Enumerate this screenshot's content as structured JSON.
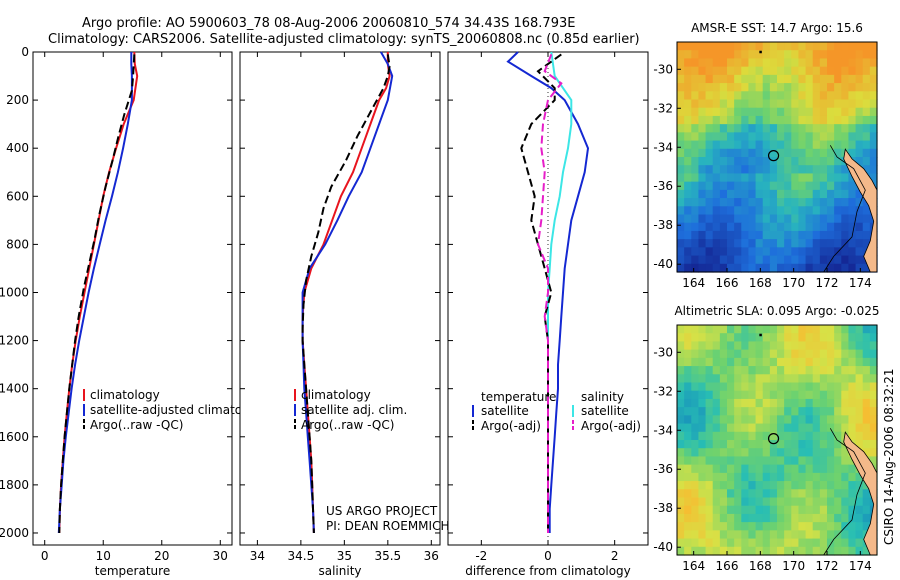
{
  "header": {
    "line1": "Argo profile: AO 5900603_78 08-Aug-2006 20060810_574 34.43S 168.793E",
    "line2": "Climatology: CARS2006. Satellite-adjusted climatology: synTS_20060808.nc (0.85d earlier)"
  },
  "side_label": "CSIRO 14-Aug-2006 08:32:21",
  "colors": {
    "red": "#e8141e",
    "blue": "#1428d2",
    "black": "#000000",
    "cyan": "#3ce6e6",
    "magenta": "#e61ec8"
  },
  "chart_data": [
    {
      "id": "temperature",
      "type": "line",
      "xlabel": "temperature",
      "xlim": [
        -2,
        32
      ],
      "ylim": [
        2050,
        0
      ],
      "xticks": [
        0,
        10,
        20,
        30
      ],
      "yticks": [
        0,
        200,
        400,
        600,
        800,
        1000,
        1200,
        1400,
        1600,
        1800,
        2000
      ],
      "legend": [
        "climatology",
        "satellite-adjusted climatolog",
        "Argo(..raw -QC)"
      ],
      "series": [
        {
          "name": "climatology",
          "color": "red",
          "dash": "",
          "points": [
            [
              15.3,
              0
            ],
            [
              15.4,
              50
            ],
            [
              15.8,
              100
            ],
            [
              15.2,
              200
            ],
            [
              13.5,
              300
            ],
            [
              12.2,
              400
            ],
            [
              11,
              500
            ],
            [
              10,
              600
            ],
            [
              9.2,
              700
            ],
            [
              8.4,
              800
            ],
            [
              7.6,
              900
            ],
            [
              6.8,
              1000
            ],
            [
              6,
              1100
            ],
            [
              5.3,
              1200
            ],
            [
              4.7,
              1300
            ],
            [
              4.2,
              1400
            ],
            [
              3.8,
              1500
            ],
            [
              3.4,
              1600
            ],
            [
              3.1,
              1700
            ],
            [
              2.8,
              1800
            ],
            [
              2.6,
              1900
            ],
            [
              2.5,
              2000
            ]
          ]
        },
        {
          "name": "satellite-adjusted climatolog",
          "color": "blue",
          "dash": "",
          "points": [
            [
              14.8,
              0
            ],
            [
              14.8,
              50
            ],
            [
              14.9,
              100
            ],
            [
              14.9,
              200
            ],
            [
              14.2,
              300
            ],
            [
              13.4,
              400
            ],
            [
              12.5,
              500
            ],
            [
              11.5,
              600
            ],
            [
              10.4,
              700
            ],
            [
              9.4,
              800
            ],
            [
              8.4,
              900
            ],
            [
              7.5,
              1000
            ],
            [
              6.7,
              1100
            ],
            [
              5.9,
              1200
            ],
            [
              5.2,
              1300
            ],
            [
              4.6,
              1400
            ],
            [
              4.1,
              1500
            ],
            [
              3.6,
              1600
            ],
            [
              3.2,
              1700
            ],
            [
              2.9,
              1800
            ],
            [
              2.6,
              1900
            ],
            [
              2.4,
              2000
            ]
          ]
        },
        {
          "name": "Argo(..raw -QC)",
          "color": "black",
          "dash": "8,4",
          "points": [
            [
              15.3,
              10
            ],
            [
              15.1,
              100
            ],
            [
              14.9,
              160
            ],
            [
              13.6,
              260
            ],
            [
              12.6,
              350
            ],
            [
              11.6,
              450
            ],
            [
              10.4,
              560
            ],
            [
              9.3,
              680
            ],
            [
              8.5,
              780
            ],
            [
              7.6,
              880
            ],
            [
              6.7,
              980
            ],
            [
              5.8,
              1100
            ],
            [
              5.2,
              1200
            ],
            [
              4.7,
              1300
            ],
            [
              4.2,
              1400
            ],
            [
              3.8,
              1500
            ],
            [
              3.4,
              1600
            ],
            [
              3.1,
              1700
            ],
            [
              2.8,
              1800
            ],
            [
              2.6,
              1900
            ],
            [
              2.5,
              2000
            ]
          ]
        }
      ]
    },
    {
      "id": "salinity",
      "type": "line",
      "xlabel": "salinity",
      "xlim": [
        33.8,
        36.1
      ],
      "ylim": [
        2050,
        0
      ],
      "xticks": [
        34,
        34.5,
        35,
        35.5,
        36
      ],
      "legend": [
        "climatology",
        "satellite adj. clim.",
        "Argo(..raw -QC)"
      ],
      "annotation": [
        "US ARGO PROJECT",
        "PI: DEAN ROEMMICH"
      ],
      "series": [
        {
          "name": "climatology",
          "color": "red",
          "dash": "",
          "points": [
            [
              35.5,
              0
            ],
            [
              35.5,
              50
            ],
            [
              35.52,
              100
            ],
            [
              35.48,
              150
            ],
            [
              35.4,
              200
            ],
            [
              35.3,
              300
            ],
            [
              35.2,
              400
            ],
            [
              35.1,
              500
            ],
            [
              34.96,
              600
            ],
            [
              34.86,
              700
            ],
            [
              34.76,
              800
            ],
            [
              34.62,
              900
            ],
            [
              34.54,
              1000
            ],
            [
              34.52,
              1100
            ],
            [
              34.52,
              1200
            ],
            [
              34.54,
              1300
            ],
            [
              34.56,
              1400
            ],
            [
              34.58,
              1500
            ],
            [
              34.6,
              1600
            ],
            [
              34.62,
              1700
            ],
            [
              34.63,
              1800
            ],
            [
              34.64,
              1900
            ],
            [
              34.65,
              2000
            ]
          ]
        },
        {
          "name": "satellite adj. clim.",
          "color": "blue",
          "dash": "",
          "points": [
            [
              35.42,
              0
            ],
            [
              35.5,
              50
            ],
            [
              35.55,
              100
            ],
            [
              35.5,
              200
            ],
            [
              35.4,
              300
            ],
            [
              35.3,
              400
            ],
            [
              35.2,
              500
            ],
            [
              35.05,
              600
            ],
            [
              34.92,
              700
            ],
            [
              34.78,
              800
            ],
            [
              34.6,
              900
            ],
            [
              34.52,
              1000
            ],
            [
              34.52,
              1100
            ],
            [
              34.52,
              1200
            ],
            [
              34.53,
              1300
            ],
            [
              34.54,
              1400
            ],
            [
              34.56,
              1500
            ],
            [
              34.58,
              1600
            ],
            [
              34.6,
              1700
            ],
            [
              34.62,
              1800
            ],
            [
              34.64,
              1900
            ],
            [
              34.65,
              2000
            ]
          ]
        },
        {
          "name": "Argo(..raw -QC)",
          "color": "black",
          "dash": "8,4",
          "points": [
            [
              35.5,
              10
            ],
            [
              35.52,
              60
            ],
            [
              35.5,
              100
            ],
            [
              35.45,
              150
            ],
            [
              35.3,
              250
            ],
            [
              35.15,
              350
            ],
            [
              35.02,
              450
            ],
            [
              34.85,
              560
            ],
            [
              34.76,
              650
            ],
            [
              34.7,
              750
            ],
            [
              34.62,
              850
            ],
            [
              34.56,
              950
            ],
            [
              34.53,
              1050
            ],
            [
              34.52,
              1150
            ],
            [
              34.52,
              1200
            ],
            [
              34.54,
              1300
            ],
            [
              34.56,
              1400
            ],
            [
              34.58,
              1500
            ],
            [
              34.6,
              1600
            ],
            [
              34.62,
              1700
            ],
            [
              34.63,
              1800
            ],
            [
              34.64,
              1900
            ],
            [
              34.65,
              2000
            ]
          ]
        }
      ]
    },
    {
      "id": "difference",
      "type": "line",
      "xlabel": "difference from climatology",
      "xlim": [
        -3,
        3
      ],
      "ylim": [
        2050,
        0
      ],
      "xticks": [
        -2,
        0,
        2
      ],
      "legend_headers": [
        "temperature",
        "salinity"
      ],
      "legend": [
        "satellite",
        "Argo(-adj)",
        "satellite",
        "Argo(-adj)"
      ],
      "series": [
        {
          "name": "temperature satellite",
          "color": "blue",
          "dash": "",
          "points": [
            [
              -0.9,
              0
            ],
            [
              -1.2,
              40
            ],
            [
              -0.5,
              100
            ],
            [
              0.1,
              150
            ],
            [
              0.5,
              200
            ],
            [
              0.9,
              300
            ],
            [
              1.2,
              400
            ],
            [
              1.1,
              500
            ],
            [
              0.9,
              600
            ],
            [
              0.7,
              700
            ],
            [
              0.6,
              800
            ],
            [
              0.5,
              900
            ],
            [
              0.45,
              1000
            ],
            [
              0.4,
              1100
            ],
            [
              0.35,
              1200
            ],
            [
              0.3,
              1300
            ],
            [
              0.3,
              1400
            ],
            [
              0.25,
              1500
            ],
            [
              0.2,
              1600
            ],
            [
              0.15,
              1700
            ],
            [
              0.1,
              1800
            ],
            [
              0.05,
              1900
            ],
            [
              0.05,
              2000
            ]
          ]
        },
        {
          "name": "salinity satellite",
          "color": "cyan",
          "dash": "",
          "points": [
            [
              0.1,
              0
            ],
            [
              0.2,
              100
            ],
            [
              0.7,
              200
            ],
            [
              0.7,
              300
            ],
            [
              0.6,
              400
            ],
            [
              0.45,
              500
            ],
            [
              0.35,
              600
            ],
            [
              0.2,
              700
            ],
            [
              0.1,
              800
            ],
            [
              0.05,
              900
            ],
            [
              0,
              1000
            ],
            [
              0,
              1100
            ],
            [
              0,
              1200
            ],
            [
              0,
              1400
            ],
            [
              0,
              2000
            ]
          ]
        },
        {
          "name": "temperature Argo(-adj)",
          "color": "black",
          "dash": "8,4",
          "points": [
            [
              0.4,
              10
            ],
            [
              -0.3,
              80
            ],
            [
              0.2,
              150
            ],
            [
              0.2,
              200
            ],
            [
              -0.5,
              300
            ],
            [
              -0.8,
              400
            ],
            [
              -0.6,
              500
            ],
            [
              -0.4,
              600
            ],
            [
              -0.5,
              700
            ],
            [
              -0.3,
              800
            ],
            [
              -0.1,
              900
            ],
            [
              0.1,
              1000
            ],
            [
              -0.1,
              1100
            ],
            [
              0,
              1200
            ],
            [
              0,
              1300
            ],
            [
              0,
              2000
            ]
          ]
        },
        {
          "name": "salinity Argo(-adj)",
          "color": "magenta",
          "dash": "8,4",
          "points": [
            [
              0.1,
              10
            ],
            [
              -0.1,
              80
            ],
            [
              0.4,
              130
            ],
            [
              0,
              200
            ],
            [
              -0.15,
              300
            ],
            [
              -0.2,
              400
            ],
            [
              -0.1,
              500
            ],
            [
              -0.15,
              600
            ],
            [
              -0.2,
              700
            ],
            [
              -0.3,
              800
            ],
            [
              0,
              900
            ],
            [
              0,
              1000
            ],
            [
              -0.1,
              1100
            ],
            [
              0,
              1200
            ],
            [
              0,
              1300
            ],
            [
              0,
              2000
            ]
          ]
        }
      ]
    }
  ],
  "maps": [
    {
      "id": "sst",
      "title": "AMSR-E SST: 14.7 Argo: 15.6",
      "palette": "sst",
      "xlim": [
        163,
        175
      ],
      "ylim": [
        -40.4,
        -28.6
      ],
      "xticks": [
        164,
        166,
        168,
        170,
        172,
        174
      ],
      "yticks": [
        -30,
        -32,
        -34,
        -36,
        -38,
        -40
      ],
      "float_marker": {
        "lon": 168.793,
        "lat": -34.43
      },
      "satellite_track_marker": {
        "lon": 168,
        "lat": -29.1
      }
    },
    {
      "id": "sla",
      "title": "Altimetric SLA: 0.095 Argo: -0.025",
      "palette": "sla",
      "xlim": [
        163,
        175
      ],
      "ylim": [
        -40.4,
        -28.6
      ],
      "xticks": [
        164,
        166,
        168,
        170,
        172,
        174
      ],
      "yticks": [
        -30,
        -32,
        -34,
        -36,
        -38,
        -40
      ],
      "float_marker": {
        "lon": 168.793,
        "lat": -34.43
      },
      "satellite_track_marker": {
        "lon": 168,
        "lat": -29.1
      }
    }
  ]
}
